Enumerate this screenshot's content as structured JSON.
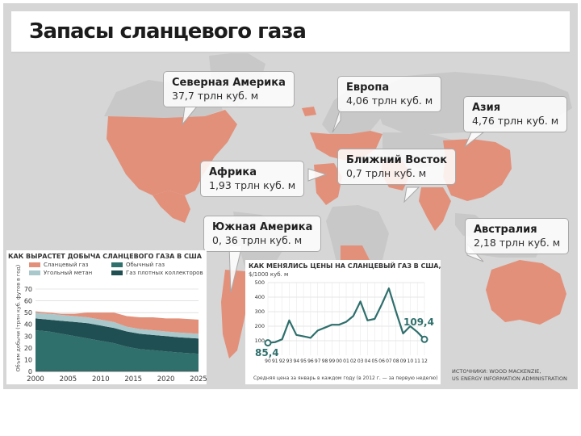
{
  "title": "Запасы сланцевого газа",
  "colors": {
    "land": "#c8c8c8",
    "highlight": "#e2907a",
    "background": "#d6d6d6",
    "shale": "#e2907a",
    "coalbed": "#a9c8cb",
    "tight": "#2f6f6c",
    "conventional": "#1f4f52",
    "price_line": "#2e6f6c"
  },
  "regions": [
    {
      "id": "north-america",
      "name": "Северная Америка",
      "value": "37,7 трлн куб. м"
    },
    {
      "id": "europe",
      "name": "Европа",
      "value": "4,06 трлн куб. м"
    },
    {
      "id": "asia",
      "name": "Азия",
      "value": "4,76 трлн куб. м"
    },
    {
      "id": "middle-east",
      "name": "Ближний Восток",
      "value": "0,7 трлн куб. м"
    },
    {
      "id": "africa",
      "name": "Африка",
      "value": "1,93 трлн куб. м"
    },
    {
      "id": "south-america",
      "name": "Южная Америка",
      "value": "0, 36 трлн куб. м"
    },
    {
      "id": "australia",
      "name": "Австралия",
      "value": "2,18 трлн куб. м"
    }
  ],
  "production_chart": {
    "title": "КАК ВЫРАСТЕТ ДОБЫЧА СЛАНЦЕВОГО ГАЗА В США",
    "ylabel": "Объем добычи (трлн куб. футов в год)",
    "legend": [
      "Сланцевый газ",
      "Угольный метан",
      "Обычный газ",
      "Газ плотных коллекторов"
    ]
  },
  "price_chart": {
    "title": "КАК МЕНЯЛИСЬ ЦЕНЫ НА СЛАНЦЕВЫЙ ГАЗ В США,",
    "unit": "$/1000 куб. м",
    "note": "Средняя цена за январь в каждом году (в 2012 г. — за первую неделю)",
    "start_label": "85,4",
    "end_label": "109,4"
  },
  "source": [
    "ИСТОЧНИКИ: WOOD MACKENZIE,",
    "US ENERGY INFORMATION ADMINISTRATION"
  ],
  "chart_data": [
    {
      "type": "area",
      "title": "КАК ВЫРАСТЕТ ДОБЫЧА СЛАНЦЕВОГО ГАЗА В США",
      "ylabel": "Объем добычи (трлн куб. футов в год)",
      "ylim": [
        0,
        70
      ],
      "yticks": [
        0,
        10,
        20,
        30,
        40,
        50,
        60,
        70
      ],
      "xticks": [
        2000,
        2005,
        2010,
        2015,
        2020,
        2025
      ],
      "x": [
        2000,
        2002,
        2004,
        2006,
        2008,
        2010,
        2012,
        2014,
        2016,
        2018,
        2020,
        2022,
        2025
      ],
      "series": [
        {
          "name": "Обычный газ",
          "values": [
            35,
            34,
            32,
            30,
            28,
            26,
            24,
            21,
            19,
            18,
            17,
            16,
            15
          ]
        },
        {
          "name": "Газ плотных коллекторов",
          "values": [
            10,
            10,
            11,
            12,
            13,
            13,
            13,
            13,
            13,
            13,
            13,
            13,
            13
          ]
        },
        {
          "name": "Угольный метан",
          "values": [
            5,
            5,
            5,
            5,
            5,
            5,
            5,
            4,
            4,
            4,
            4,
            4,
            4
          ]
        },
        {
          "name": "Сланцевый газ",
          "values": [
            1,
            1,
            1,
            2,
            4,
            6,
            8,
            9,
            10,
            11,
            11,
            12,
            12
          ]
        }
      ],
      "grid": true,
      "legend": "top"
    },
    {
      "type": "line",
      "title": "КАК МЕНЯЛИСЬ ЦЕНЫ НА СЛАНЦЕВЫЙ ГАЗ В США,",
      "ylabel": "$/1000 куб. м",
      "ylim": [
        0,
        500
      ],
      "yticks": [
        100,
        200,
        300,
        400,
        500
      ],
      "xticks": [
        "90",
        "91",
        "92",
        "93",
        "94",
        "95",
        "96",
        "97",
        "98",
        "99",
        "00",
        "01",
        "02",
        "03",
        "04",
        "05",
        "06",
        "07",
        "08",
        "09",
        "10",
        "11",
        "12"
      ],
      "x": [
        1990,
        1991,
        1992,
        1993,
        1994,
        1995,
        1996,
        1997,
        1998,
        1999,
        2000,
        2001,
        2002,
        2003,
        2004,
        2005,
        2006,
        2007,
        2008,
        2009,
        2010,
        2011,
        2012
      ],
      "values": [
        85.4,
        90,
        110,
        240,
        140,
        130,
        120,
        170,
        190,
        210,
        210,
        230,
        270,
        370,
        240,
        250,
        350,
        460,
        300,
        150,
        200,
        160,
        109.4
      ],
      "annotations": [
        "85,4",
        "109,4"
      ],
      "grid": true
    }
  ]
}
